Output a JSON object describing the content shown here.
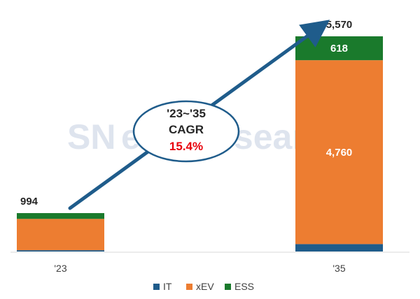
{
  "watermark": {
    "brand_a": "SN",
    "brand_b": "e",
    "brand_c": "Research"
  },
  "chart_data": {
    "type": "bar",
    "stacked": true,
    "categories": [
      "'23",
      "'35"
    ],
    "series": [
      {
        "name": "IT",
        "color": "#1f5c8b",
        "values": [
          34,
          192
        ]
      },
      {
        "name": "xEV",
        "color": "#ed7d31",
        "values": [
          810,
          4760
        ]
      },
      {
        "name": "ESS",
        "color": "#1a7a2c",
        "values": [
          150,
          618
        ]
      }
    ],
    "totals": [
      994,
      5570
    ],
    "total_labels": [
      "994",
      "5,570"
    ],
    "segment_labels": [
      [
        "",
        "",
        ""
      ],
      [
        "",
        "4,760",
        "618"
      ]
    ],
    "ylim": [
      0,
      6000
    ],
    "grid": false,
    "legend": "bottom",
    "annotation": {
      "period": "'23~'35",
      "metric": "CAGR",
      "value": "15.4%"
    }
  }
}
